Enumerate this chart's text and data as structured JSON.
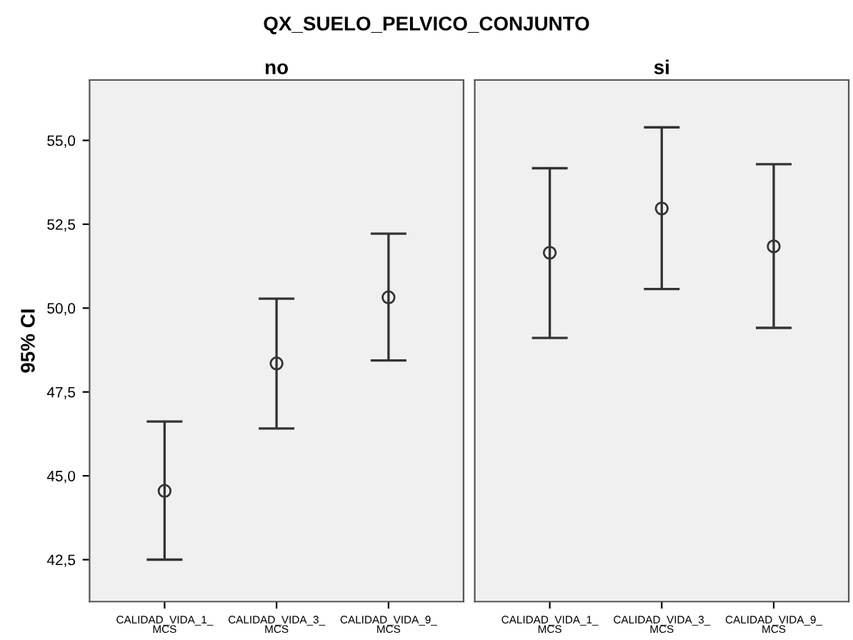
{
  "chart_data": [
    {
      "type": "scatter",
      "title": "QX_SUELO_PELVICO_CONJUNTO",
      "subtitle": "no",
      "ylabel": "95% CI",
      "categories": [
        "CALIDAD_VIDA_1_MCS",
        "CALIDAD_VIDA_3_MCS",
        "CALIDAD_VIDA_9_MCS"
      ],
      "series": [
        {
          "color": "#333333",
          "values": [
            44.55,
            48.35,
            50.32
          ],
          "errors": [
            [
              42.5,
              46.62
            ],
            [
              46.41,
              50.28
            ],
            [
              48.44,
              52.22
            ]
          ]
        }
      ],
      "ylim": [
        41.25,
        56.8
      ],
      "yticks": [
        {
          "value": 42.5,
          "label": "42,5"
        },
        {
          "value": 45,
          "label": "45,0"
        },
        {
          "value": 47.5,
          "label": "47,5"
        },
        {
          "value": 50,
          "label": "50,0"
        },
        {
          "value": 52.5,
          "label": "52,5"
        },
        {
          "value": 55,
          "label": "55,0"
        }
      ],
      "marker": "circle",
      "grid": false
    },
    {
      "type": "scatter",
      "subtitle": "si",
      "categories": [
        "CALIDAD_VIDA_1_MCS",
        "CALIDAD_VIDA_3_MCS",
        "CALIDAD_VIDA_9_MCS"
      ],
      "series": [
        {
          "color": "#333333",
          "values": [
            51.65,
            52.97,
            51.84
          ],
          "errors": [
            [
              49.11,
              54.17
            ],
            [
              50.57,
              55.39
            ],
            [
              49.41,
              54.29
            ]
          ]
        }
      ],
      "ylim": [
        41.25,
        56.8
      ],
      "tick_labels": "x",
      "marker": "circle",
      "grid": false
    }
  ]
}
